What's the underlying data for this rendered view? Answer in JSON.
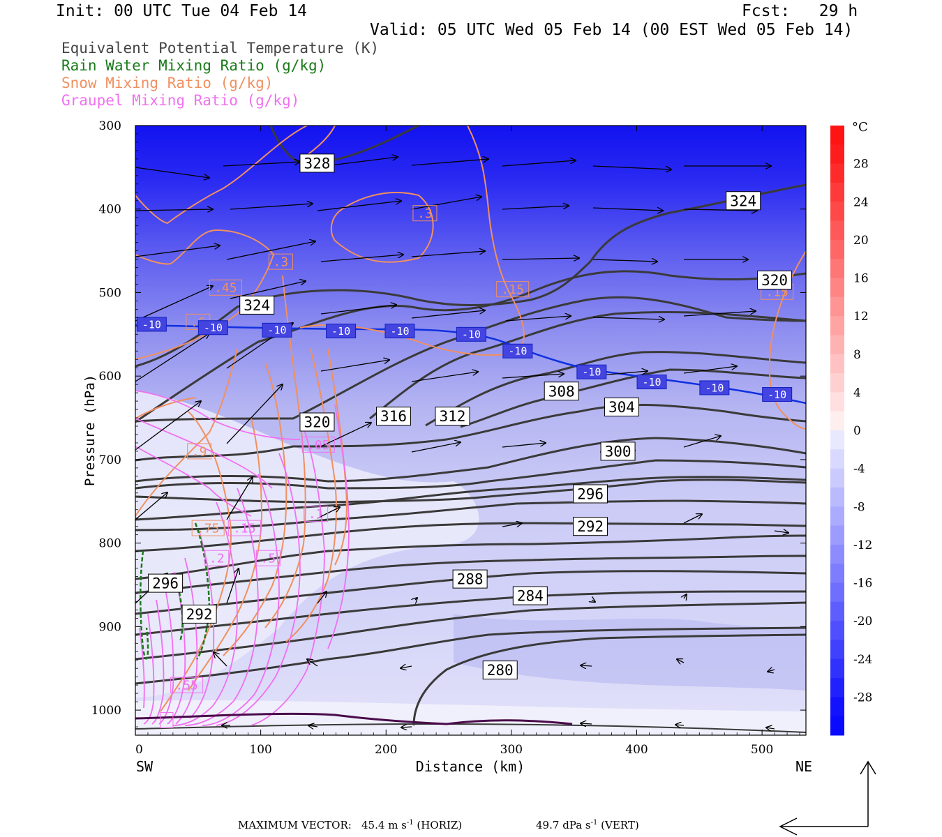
{
  "header": {
    "init": "Init: 00 UTC Tue 04 Feb 14",
    "fcst": "Fcst:   29 h",
    "valid": "Valid: 05 UTC Wed 05 Feb 14 (00 EST Wed 05 Feb 14)"
  },
  "legend": [
    {
      "label": "Equivalent Potential Temperature (K)",
      "color": "#444444"
    },
    {
      "label": "Rain Water Mixing Ratio (g/kg)",
      "color": "#1a7a1a"
    },
    {
      "label": "Snow Mixing Ratio (g/kg)",
      "color": "#f09060"
    },
    {
      "label": "Graupel Mixing Ratio (g/kg)",
      "color": "#f070f0"
    }
  ],
  "footer": {
    "max_vector_label": "MAXIMUM VECTOR:",
    "horiz_value": "45.4",
    "horiz_unit": "m s",
    "horiz_exp": "-1",
    "horiz_tag": "(HORIZ)",
    "vert_value": "49.7",
    "vert_unit": "dPa s",
    "vert_exp": "-1",
    "vert_tag": "(VERT)"
  },
  "chart_data": {
    "type": "contour",
    "xlabel": "Distance (km)",
    "ylabel": "Pressure (hPa)",
    "xlim": [
      0,
      535
    ],
    "ylim": [
      1030,
      300
    ],
    "x_ticks": [
      0,
      100,
      200,
      300,
      400,
      500
    ],
    "y_ticks": [
      300,
      400,
      500,
      600,
      700,
      800,
      900,
      1000
    ],
    "x_end_labels": {
      "left": "SW",
      "right": "NE"
    },
    "colorbar": {
      "unit": "°C",
      "tick_labels": [
        "28",
        "24",
        "20",
        "16",
        "12",
        "8",
        "4",
        "0",
        "-4",
        "-8",
        "-12",
        "-16",
        "-20",
        "-24",
        "-28"
      ],
      "range": [
        -32,
        32
      ]
    },
    "theta_e_labels": [
      {
        "text": "328",
        "x": 145,
        "p": 345
      },
      {
        "text": "324",
        "x": 485,
        "p": 390
      },
      {
        "text": "324",
        "x": 97,
        "p": 515
      },
      {
        "text": "320",
        "x": 510,
        "p": 485
      },
      {
        "text": "320",
        "x": 145,
        "p": 655
      },
      {
        "text": "316",
        "x": 206,
        "p": 648
      },
      {
        "text": "312",
        "x": 253,
        "p": 648
      },
      {
        "text": "308",
        "x": 340,
        "p": 618
      },
      {
        "text": "304",
        "x": 388,
        "p": 637
      },
      {
        "text": "300",
        "x": 385,
        "p": 690
      },
      {
        "text": "296",
        "x": 363,
        "p": 741
      },
      {
        "text": "292",
        "x": 363,
        "p": 780
      },
      {
        "text": "288",
        "x": 267,
        "p": 843
      },
      {
        "text": "284",
        "x": 315,
        "p": 863
      },
      {
        "text": "280",
        "x": 291,
        "p": 952
      },
      {
        "text": "296",
        "x": 24,
        "p": 848
      },
      {
        "text": "292",
        "x": 51,
        "p": 885
      }
    ],
    "temperature_labels": [
      {
        "text": "-10",
        "x": 13,
        "p": 538
      },
      {
        "text": "-10",
        "x": 62,
        "p": 542
      },
      {
        "text": "-10",
        "x": 113,
        "p": 545
      },
      {
        "text": "-10",
        "x": 164,
        "p": 546
      },
      {
        "text": "-10",
        "x": 211,
        "p": 546
      },
      {
        "text": "-10",
        "x": 268,
        "p": 550
      },
      {
        "text": "-10",
        "x": 305,
        "p": 570
      },
      {
        "text": "-10",
        "x": 364,
        "p": 595
      },
      {
        "text": "-10",
        "x": 412,
        "p": 607
      },
      {
        "text": "-10",
        "x": 462,
        "p": 614
      },
      {
        "text": "-10",
        "x": 512,
        "p": 622
      }
    ],
    "snow_labels": [
      {
        "text": ".3",
        "x": 231,
        "p": 405
      },
      {
        "text": ".3",
        "x": 116,
        "p": 463
      },
      {
        "text": ".45",
        "x": 72,
        "p": 494
      },
      {
        "text": ".15",
        "x": 301,
        "p": 496
      },
      {
        "text": ".15",
        "x": 512,
        "p": 499
      },
      {
        "text": ".6",
        "x": 50,
        "p": 535
      },
      {
        "text": ".9",
        "x": 51,
        "p": 690
      },
      {
        "text": ".75",
        "x": 58,
        "p": 782
      }
    ],
    "graupel_labels": [
      {
        "text": ".05",
        "x": 146,
        "p": 682
      },
      {
        "text": ".1",
        "x": 144,
        "p": 765
      },
      {
        "text": ".15",
        "x": 87,
        "p": 782
      },
      {
        "text": ".2",
        "x": 65,
        "p": 818
      },
      {
        "text": ".5",
        "x": 106,
        "p": 818
      },
      {
        "text": ".55",
        "x": 41,
        "p": 970
      },
      {
        "text": "",
        "x": 25,
        "p": 1012
      }
    ]
  }
}
